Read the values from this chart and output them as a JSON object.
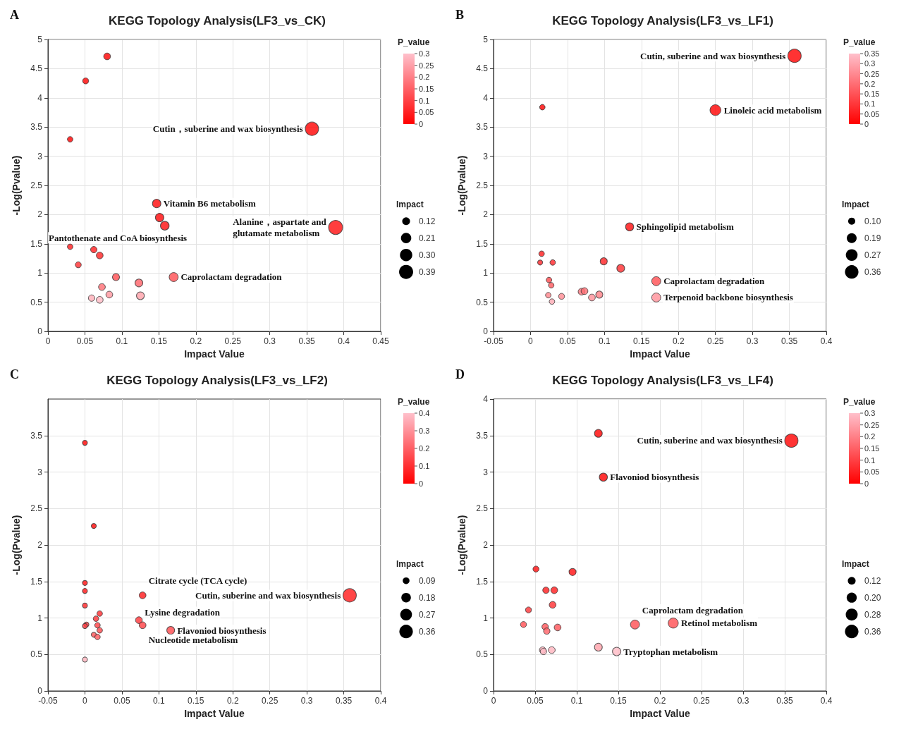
{
  "chart_data": [
    {
      "type": "bubble",
      "title": "KEGG Topology Analysis(LF3_vs_CK)",
      "xlabel": "Impact Value",
      "ylabel": "-Log(Pvalue)",
      "clabel": "P_value",
      "legend_title": "Impact",
      "x": [
        0.08,
        0.051,
        0.03,
        0.357,
        0.147,
        0.151,
        0.158,
        0.389,
        0.03,
        0.062,
        0.07,
        0.041,
        0.092,
        0.17,
        0.123,
        0.073,
        0.083,
        0.125,
        0.059,
        0.07
      ],
      "values": [
        4.71,
        4.29,
        3.29,
        3.47,
        2.19,
        1.95,
        1.81,
        1.78,
        1.45,
        1.4,
        1.3,
        1.14,
        0.93,
        0.93,
        0.83,
        0.76,
        0.63,
        0.61,
        0.57,
        0.54
      ],
      "sizes": [
        0.09,
        0.07,
        0.06,
        0.35,
        0.14,
        0.14,
        0.15,
        0.39,
        0.06,
        0.08,
        0.09,
        0.07,
        0.1,
        0.16,
        0.12,
        0.09,
        0.09,
        0.12,
        0.08,
        0.09
      ],
      "cvalues": [
        0,
        0,
        0,
        0,
        0.01,
        0.01,
        0.02,
        0.02,
        0.04,
        0.04,
        0.05,
        0.07,
        0.12,
        0.12,
        0.15,
        0.17,
        0.23,
        0.25,
        0.27,
        0.29
      ],
      "size_legend": [
        0.12,
        0.21,
        {
          "value": 0.3,
          "label": "0.30"
        },
        0.39
      ],
      "clim": [
        0,
        0.3
      ],
      "cticks": [
        0,
        0.05,
        0.1,
        0.15,
        0.2,
        0.25,
        0.3
      ],
      "xlim": [
        0,
        0.45
      ],
      "xticks": [
        0,
        0.05,
        0.1,
        0.15,
        0.2,
        0.25,
        0.3,
        0.35,
        0.4,
        0.45
      ],
      "ylim": [
        0,
        5
      ],
      "yticks": [
        0,
        0.5,
        1,
        1.5,
        2,
        2.5,
        3,
        3.5,
        4,
        4.5,
        5
      ],
      "grid": true,
      "annotations": [
        "A",
        {
          "text": "Cutin，suberine and wax biosynthesis",
          "x": 0.357,
          "y": 3.47
        },
        {
          "text": "Vitamin B6 metabolism",
          "x": 0.147,
          "y": 2.19
        },
        {
          "text": "Alanine，aspartate and\nglutamate metabolism",
          "x": 0.389,
          "y": 1.78
        },
        {
          "text": "Pantothenate and CoA biosynthesis",
          "x": 0.158,
          "y": 1.81
        },
        {
          "text": "Caprolactam degradation",
          "x": 0.17,
          "y": 0.93
        }
      ]
    },
    {
      "type": "bubble",
      "title": "KEGG Topology Analysis(LF3_vs_LF1)",
      "xlabel": "Impact Value",
      "ylabel": "-Log(Pvalue)",
      "clabel": "P_value",
      "legend_title": "Impact",
      "x": [
        0.357,
        0.25,
        0.016,
        0.134,
        0.015,
        0.013,
        0.03,
        0.099,
        0.122,
        0.17,
        0.025,
        0.028,
        0.024,
        0.029,
        0.042,
        0.069,
        0.073,
        0.083,
        0.093,
        0.17
      ],
      "values": [
        4.72,
        3.79,
        3.84,
        1.79,
        1.33,
        1.18,
        1.18,
        1.2,
        1.08,
        0.86,
        0.88,
        0.79,
        0.62,
        0.51,
        0.6,
        0.68,
        0.69,
        0.58,
        0.63,
        0.58
      ],
      "sizes": [
        0.35,
        0.23,
        0.06,
        0.13,
        0.06,
        0.05,
        0.06,
        0.1,
        0.12,
        0.16,
        0.06,
        0.06,
        0.06,
        0.06,
        0.07,
        0.09,
        0.09,
        0.09,
        0.1,
        0.16
      ],
      "cvalues": [
        0,
        0,
        0,
        0.02,
        0.05,
        0.07,
        0.07,
        0.06,
        0.08,
        0.14,
        0.13,
        0.16,
        0.24,
        0.31,
        0.25,
        0.21,
        0.2,
        0.26,
        0.23,
        0.26
      ],
      "size_legend": [
        {
          "value": 0.1,
          "label": "0.10"
        },
        0.19,
        0.27,
        0.36
      ],
      "clim": [
        0,
        0.35
      ],
      "cticks": [
        0,
        0.05,
        0.1,
        0.15,
        0.2,
        0.25,
        0.3,
        0.35
      ],
      "xlim": [
        -0.05,
        0.4
      ],
      "xticks": [
        -0.05,
        0,
        0.05,
        0.1,
        0.15,
        0.2,
        0.25,
        0.3,
        0.35,
        0.4
      ],
      "ylim": [
        0,
        5
      ],
      "yticks": [
        0,
        0.5,
        1,
        1.5,
        2,
        2.5,
        3,
        3.5,
        4,
        4.5,
        5
      ],
      "grid": true,
      "annotations": [
        "B",
        {
          "text": "Cutin, suberine and wax biosynthesis",
          "x": 0.357,
          "y": 4.72
        },
        {
          "text": "Linoleic acid metabolism",
          "x": 0.25,
          "y": 3.79
        },
        {
          "text": "Sphingolipid metabolism",
          "x": 0.134,
          "y": 1.79
        },
        {
          "text": "Caprolactam degradation",
          "x": 0.17,
          "y": 0.86
        },
        {
          "text": "Terpenoid backbone biosynthesis",
          "x": 0.17,
          "y": 0.58
        }
      ]
    },
    {
      "type": "bubble",
      "title": "KEGG Topology Analysis(LF3_vs_LF2)",
      "xlabel": "Impact Value",
      "ylabel": "-Log(Pvalue)",
      "clabel": "P_value",
      "legend_title": "Impact",
      "x": [
        0,
        0.012,
        0,
        0,
        0,
        0.02,
        0.015,
        0.073,
        0.078,
        0.358,
        0.078,
        0.017,
        0.002,
        0,
        0.02,
        0.116,
        0.012,
        0.017,
        0
      ],
      "values": [
        3.4,
        2.26,
        1.48,
        1.37,
        1.17,
        1.06,
        0.99,
        0.97,
        1.31,
        1.31,
        0.9,
        0.9,
        0.91,
        0.89,
        0.83,
        0.83,
        0.77,
        0.74,
        0.43
      ],
      "sizes": [
        0.05,
        0.05,
        0.05,
        0.05,
        0.05,
        0.06,
        0.06,
        0.09,
        0.09,
        0.35,
        0.09,
        0.06,
        0.05,
        0.05,
        0.06,
        0.12,
        0.05,
        0.06,
        0.05
      ],
      "cvalues": [
        0,
        0.01,
        0.03,
        0.04,
        0.07,
        0.09,
        0.1,
        0.11,
        0.05,
        0.05,
        0.13,
        0.13,
        0.12,
        0.13,
        0.15,
        0.15,
        0.17,
        0.18,
        0.37
      ],
      "size_legend": [
        0.09,
        0.18,
        0.27,
        0.36
      ],
      "clim": [
        0,
        0.4
      ],
      "cticks": [
        0,
        0.1,
        0.2,
        0.3,
        0.4
      ],
      "xlim": [
        -0.05,
        0.4
      ],
      "xticks": [
        -0.05,
        0,
        0.05,
        0.1,
        0.15,
        0.2,
        0.25,
        0.3,
        0.35,
        0.4
      ],
      "ylim": [
        0,
        4
      ],
      "yticks": [
        0,
        0.5,
        1,
        1.5,
        2,
        2.5,
        3,
        3.5
      ],
      "grid": true,
      "annotations": [
        "C",
        {
          "text": "Cutin, suberine and wax biosynthesis",
          "x": 0.358,
          "y": 1.31
        },
        {
          "text": "Citrate cycle (TCA cycle)",
          "x": 0.078,
          "y": 1.31
        },
        {
          "text": "Lysine degradation",
          "x": 0.073,
          "y": 0.97
        },
        {
          "text": "Nucleotide metabolism",
          "x": 0.078,
          "y": 0.9
        },
        {
          "text": "Flavoniod biosynthesis",
          "x": 0.116,
          "y": 0.83
        }
      ]
    },
    {
      "type": "bubble",
      "title": "KEGG Topology Analysis(LF3_vs_LF4)",
      "xlabel": "Impact Value",
      "ylabel": "-Log(Pvalue)",
      "clabel": "P_value",
      "legend_title": "Impact",
      "x": [
        0.126,
        0.358,
        0.132,
        0.051,
        0.095,
        0.063,
        0.073,
        0.071,
        0.042,
        0.036,
        0.062,
        0.064,
        0.077,
        0.17,
        0.216,
        0.059,
        0.06,
        0.07,
        0.126,
        0.148
      ],
      "values": [
        3.53,
        3.43,
        2.93,
        1.67,
        1.63,
        1.38,
        1.38,
        1.18,
        1.11,
        0.91,
        0.88,
        0.82,
        0.87,
        0.91,
        0.93,
        0.56,
        0.54,
        0.56,
        0.6,
        0.54
      ],
      "sizes": [
        0.12,
        0.35,
        0.13,
        0.07,
        0.1,
        0.08,
        0.09,
        0.09,
        0.07,
        0.07,
        0.08,
        0.08,
        0.09,
        0.16,
        0.2,
        0.08,
        0.08,
        0.09,
        0.12,
        0.14
      ],
      "cvalues": [
        0,
        0,
        0,
        0.02,
        0.02,
        0.04,
        0.04,
        0.07,
        0.08,
        0.12,
        0.13,
        0.15,
        0.13,
        0.12,
        0.12,
        0.28,
        0.29,
        0.28,
        0.25,
        0.29
      ],
      "size_legend": [
        0.12,
        {
          "value": 0.2,
          "label": "0.20"
        },
        0.28,
        0.36
      ],
      "clim": [
        0,
        0.3
      ],
      "cticks": [
        0,
        0.05,
        0.1,
        0.15,
        0.2,
        0.25,
        0.3
      ],
      "xlim": [
        0,
        0.4
      ],
      "xticks": [
        0,
        0.05,
        0.1,
        0.15,
        0.2,
        0.25,
        0.3,
        0.35,
        0.4
      ],
      "ylim": [
        0,
        4
      ],
      "yticks": [
        0,
        0.5,
        1,
        1.5,
        2,
        2.5,
        3,
        3.5,
        4
      ],
      "grid": true,
      "annotations": [
        "D",
        {
          "text": "Cutin, suberine and wax biosynthesis",
          "x": 0.358,
          "y": 3.43
        },
        {
          "text": "Flavoniod biosynthesis",
          "x": 0.132,
          "y": 2.93
        },
        {
          "text": "Retinol metabolism",
          "x": 0.216,
          "y": 0.93
        },
        {
          "text": "Caprolactam degradation",
          "x": 0.17,
          "y": 0.91
        },
        {
          "text": "Tryptophan metabolism",
          "x": 0.148,
          "y": 0.54
        }
      ]
    }
  ]
}
